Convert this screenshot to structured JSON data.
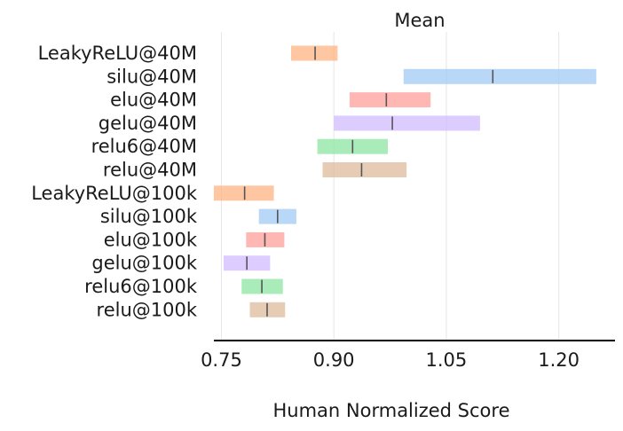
{
  "chart_data": {
    "type": "interval",
    "title": "Mean",
    "xlabel": "Human Normalized Score",
    "ylabel": "",
    "xlim": [
      0.74,
      1.275
    ],
    "xticks": [
      0.75,
      0.9,
      1.05,
      1.2
    ],
    "xtick_labels": [
      "0.75",
      "0.90",
      "1.05",
      "1.20"
    ],
    "grid": "vertical",
    "items": [
      {
        "label": "LeakyReLU@40M",
        "low": 0.843,
        "point": 0.875,
        "high": 0.905,
        "color": "#ffb482"
      },
      {
        "label": "silu@40M",
        "low": 0.993,
        "point": 1.112,
        "high": 1.25,
        "color": "#a1c9f4"
      },
      {
        "label": "elu@40M",
        "low": 0.921,
        "point": 0.97,
        "high": 1.029,
        "color": "#ff9f9b"
      },
      {
        "label": "gelu@40M",
        "low": 0.9,
        "point": 0.978,
        "high": 1.095,
        "color": "#d0bbff"
      },
      {
        "label": "relu6@40M",
        "low": 0.878,
        "point": 0.925,
        "high": 0.972,
        "color": "#8de5a1"
      },
      {
        "label": "relu@40M",
        "low": 0.885,
        "point": 0.937,
        "high": 0.997,
        "color": "#debb9b"
      },
      {
        "label": "LeakyReLU@100k",
        "low": 0.74,
        "point": 0.781,
        "high": 0.82,
        "color": "#ffb482"
      },
      {
        "label": "silu@100k",
        "low": 0.8,
        "point": 0.825,
        "high": 0.85,
        "color": "#a1c9f4"
      },
      {
        "label": "elu@100k",
        "low": 0.783,
        "point": 0.808,
        "high": 0.834,
        "color": "#ff9f9b"
      },
      {
        "label": "gelu@100k",
        "low": 0.753,
        "point": 0.784,
        "high": 0.815,
        "color": "#d0bbff"
      },
      {
        "label": "relu6@100k",
        "low": 0.777,
        "point": 0.804,
        "high": 0.832,
        "color": "#8de5a1"
      },
      {
        "label": "relu@100k",
        "low": 0.788,
        "point": 0.811,
        "high": 0.835,
        "color": "#debb9b"
      }
    ]
  }
}
